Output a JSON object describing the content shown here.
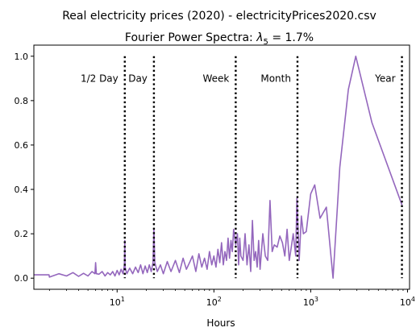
{
  "chart_data": {
    "type": "line",
    "suptitle": "Real electricity prices (2020) - electricityPrices2020.csv",
    "title_prefix": "Fourier Power Spectra: ",
    "title_lambda": "λ",
    "title_sub": "5",
    "title_suffix": " = 1.7%",
    "xlabel": "Hours",
    "ylabel": "",
    "xscale": "log",
    "xlim": [
      1.38,
      10500
    ],
    "ylim": [
      -0.05,
      1.05
    ],
    "x_ticks": [
      {
        "value": 10,
        "base": "10",
        "exp": "1"
      },
      {
        "value": 100,
        "base": "10",
        "exp": "2"
      },
      {
        "value": 1000,
        "base": "10",
        "exp": "3"
      },
      {
        "value": 10000,
        "base": "10",
        "exp": "4"
      }
    ],
    "y_ticks": [
      {
        "value": 0.0,
        "label": "0.0"
      },
      {
        "value": 0.2,
        "label": "0.2"
      },
      {
        "value": 0.4,
        "label": "0.4"
      },
      {
        "value": 0.6,
        "label": "0.6"
      },
      {
        "value": 0.8,
        "label": "0.8"
      },
      {
        "value": 1.0,
        "label": "1.0"
      }
    ],
    "vlines": [
      {
        "x": 12,
        "label": "1/2 Day",
        "anchor": "end"
      },
      {
        "x": 24,
        "label": "Day",
        "anchor": "end"
      },
      {
        "x": 168,
        "label": "Week",
        "anchor": "end"
      },
      {
        "x": 730,
        "label": "Month",
        "anchor": "end"
      },
      {
        "x": 8760,
        "label": "Year",
        "anchor": "end"
      }
    ],
    "vline_label_y": 0.9,
    "line_color": "#9467bd",
    "series": [
      {
        "x": [
          1.0,
          1.98,
          2.0,
          2.5,
          3.0,
          3.5,
          4.0,
          4.5,
          5.0,
          5.5,
          5.9,
          6.0,
          6.1,
          6.5,
          7.0,
          7.5,
          8.0,
          8.5,
          9.0,
          9.5,
          10.0,
          10.5,
          11.0,
          11.5,
          11.9,
          12.0,
          12.1,
          12.6,
          13.5,
          14.5,
          15.5,
          16.5,
          17.5,
          18.5,
          19.5,
          20.5,
          21.5,
          22.5,
          23.5,
          24.0,
          24.5,
          26,
          28,
          30,
          33,
          36,
          40,
          44,
          48,
          52,
          56,
          60,
          65,
          70,
          75,
          80,
          85,
          90,
          95,
          100,
          105,
          110,
          115,
          120,
          125,
          130,
          135,
          140,
          145,
          150,
          155,
          160,
          168,
          175,
          180,
          185,
          190,
          200,
          210,
          220,
          230,
          240,
          250,
          260,
          270,
          280,
          290,
          300,
          320,
          340,
          360,
          380,
          400,
          420,
          450,
          480,
          510,
          540,
          570,
          600,
          630,
          660,
          700,
          720,
          760,
          800,
          840,
          900,
          1000,
          1100,
          1250,
          1450,
          1700,
          2000,
          2450,
          2920,
          4300,
          8760
        ],
        "y": [
          0.015,
          0.015,
          0.005,
          0.02,
          0.01,
          0.025,
          0.008,
          0.022,
          0.01,
          0.03,
          0.02,
          0.07,
          0.02,
          0.018,
          0.03,
          0.01,
          0.025,
          0.015,
          0.03,
          0.01,
          0.035,
          0.015,
          0.04,
          0.02,
          0.06,
          0.17,
          0.05,
          0.02,
          0.045,
          0.02,
          0.05,
          0.025,
          0.06,
          0.02,
          0.055,
          0.025,
          0.06,
          0.03,
          0.07,
          0.22,
          0.07,
          0.03,
          0.06,
          0.02,
          0.075,
          0.03,
          0.08,
          0.025,
          0.09,
          0.04,
          0.07,
          0.1,
          0.03,
          0.11,
          0.05,
          0.09,
          0.04,
          0.12,
          0.06,
          0.1,
          0.05,
          0.13,
          0.07,
          0.16,
          0.06,
          0.12,
          0.08,
          0.18,
          0.09,
          0.17,
          0.12,
          0.22,
          0.15,
          0.2,
          0.06,
          0.18,
          0.1,
          0.08,
          0.2,
          0.06,
          0.15,
          0.03,
          0.26,
          0.08,
          0.12,
          0.05,
          0.17,
          0.04,
          0.2,
          0.1,
          0.08,
          0.35,
          0.12,
          0.15,
          0.14,
          0.19,
          0.16,
          0.1,
          0.22,
          0.08,
          0.14,
          0.2,
          0.1,
          0.36,
          0.08,
          0.28,
          0.2,
          0.21,
          0.38,
          0.42,
          0.27,
          0.32,
          0.0,
          0.5,
          0.85,
          1.0,
          0.7,
          0.33
        ]
      }
    ]
  }
}
